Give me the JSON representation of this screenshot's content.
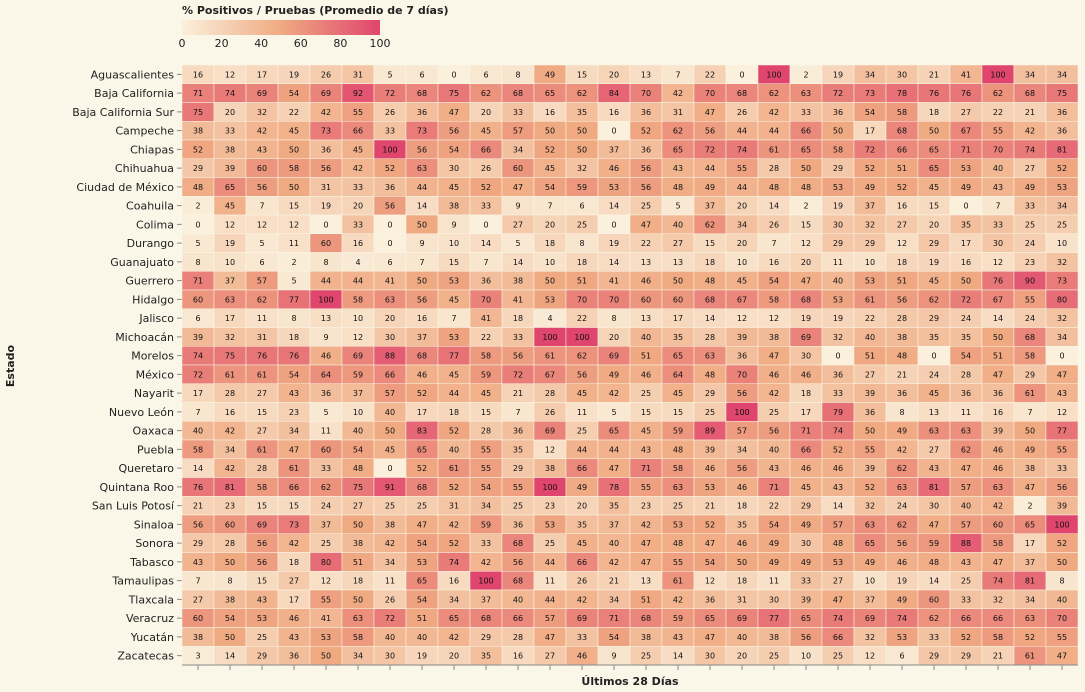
{
  "chart_data": {
    "type": "heatmap",
    "legend": {
      "title": "% Positivos / Pruebas (Promedio de 7 días)",
      "ticks": [
        "0",
        "20",
        "40",
        "60",
        "80",
        "100"
      ],
      "domain": [
        0,
        100
      ],
      "color_low": "#faf0dc",
      "color_high": "#e0456e"
    },
    "xlabel": "Últimos 28 Días",
    "ylabel": "Estado",
    "grid": false,
    "rows": [
      {
        "label": "Aguascalientes",
        "values": [
          16,
          12,
          17,
          19,
          26,
          31,
          5,
          6,
          0,
          6,
          8,
          49,
          15,
          20,
          13,
          7,
          22,
          0,
          100,
          2,
          19,
          34,
          30,
          21,
          41,
          100,
          34,
          34
        ]
      },
      {
        "label": "Baja California",
        "values": [
          71,
          74,
          69,
          54,
          69,
          92,
          72,
          68,
          75,
          62,
          68,
          65,
          62,
          84,
          70,
          42,
          70,
          68,
          62,
          63,
          72,
          73,
          78,
          76,
          76,
          62,
          68,
          75
        ]
      },
      {
        "label": "Baja California Sur",
        "values": [
          75,
          20,
          32,
          22,
          42,
          55,
          26,
          36,
          47,
          20,
          33,
          16,
          35,
          16,
          36,
          31,
          47,
          26,
          42,
          33,
          36,
          54,
          58,
          18,
          27,
          22,
          21,
          36
        ]
      },
      {
        "label": "Campeche",
        "values": [
          38,
          33,
          42,
          45,
          73,
          66,
          33,
          73,
          56,
          45,
          57,
          50,
          50,
          0,
          52,
          62,
          56,
          44,
          44,
          66,
          50,
          17,
          68,
          50,
          67,
          55,
          42,
          36
        ]
      },
      {
        "label": "Chiapas",
        "values": [
          52,
          38,
          43,
          50,
          36,
          45,
          100,
          56,
          54,
          66,
          34,
          52,
          50,
          37,
          36,
          65,
          72,
          74,
          61,
          65,
          58,
          72,
          66,
          65,
          71,
          70,
          74,
          81
        ]
      },
      {
        "label": "Chihuahua",
        "values": [
          29,
          39,
          60,
          58,
          56,
          42,
          52,
          63,
          30,
          26,
          60,
          45,
          32,
          46,
          56,
          43,
          44,
          55,
          28,
          50,
          29,
          52,
          51,
          65,
          53,
          40,
          27,
          52
        ]
      },
      {
        "label": "Ciudad de México",
        "values": [
          48,
          65,
          56,
          50,
          31,
          33,
          36,
          44,
          45,
          52,
          47,
          54,
          59,
          53,
          56,
          48,
          49,
          44,
          48,
          48,
          53,
          49,
          52,
          45,
          49,
          43,
          49,
          53
        ]
      },
      {
        "label": "Coahuila",
        "values": [
          2,
          45,
          7,
          15,
          19,
          20,
          56,
          14,
          38,
          33,
          9,
          7,
          6,
          14,
          25,
          5,
          37,
          20,
          14,
          2,
          19,
          37,
          16,
          15,
          0,
          7,
          33,
          34
        ]
      },
      {
        "label": "Colima",
        "values": [
          0,
          12,
          12,
          12,
          0,
          33,
          0,
          50,
          9,
          0,
          27,
          20,
          25,
          0,
          47,
          40,
          62,
          34,
          26,
          15,
          30,
          32,
          27,
          20,
          35,
          33,
          25,
          25
        ]
      },
      {
        "label": "Durango",
        "values": [
          5,
          19,
          5,
          11,
          60,
          16,
          0,
          9,
          10,
          14,
          5,
          18,
          8,
          19,
          22,
          27,
          15,
          20,
          7,
          12,
          29,
          29,
          12,
          29,
          17,
          30,
          24,
          10
        ]
      },
      {
        "label": "Guanajuato",
        "values": [
          8,
          10,
          6,
          2,
          8,
          4,
          6,
          7,
          15,
          7,
          14,
          10,
          18,
          14,
          13,
          13,
          18,
          10,
          16,
          20,
          11,
          10,
          18,
          19,
          16,
          12,
          23,
          32
        ]
      },
      {
        "label": "Guerrero",
        "values": [
          71,
          37,
          57,
          5,
          44,
          44,
          41,
          50,
          53,
          36,
          38,
          50,
          51,
          41,
          46,
          50,
          48,
          45,
          54,
          47,
          40,
          53,
          51,
          45,
          50,
          76,
          90,
          73
        ]
      },
      {
        "label": "Hidalgo",
        "values": [
          60,
          63,
          62,
          77,
          100,
          58,
          63,
          56,
          45,
          70,
          41,
          53,
          70,
          70,
          60,
          60,
          68,
          67,
          58,
          68,
          53,
          61,
          56,
          62,
          72,
          67,
          55,
          80
        ]
      },
      {
        "label": "Jalisco",
        "values": [
          6,
          17,
          11,
          8,
          13,
          10,
          20,
          16,
          7,
          41,
          18,
          4,
          22,
          8,
          13,
          17,
          14,
          12,
          12,
          19,
          19,
          22,
          28,
          29,
          24,
          14,
          24,
          32
        ]
      },
      {
        "label": "Michoacán",
        "values": [
          39,
          32,
          31,
          18,
          9,
          12,
          30,
          37,
          53,
          22,
          33,
          100,
          100,
          20,
          40,
          35,
          28,
          39,
          38,
          69,
          32,
          40,
          38,
          35,
          35,
          50,
          68,
          34
        ]
      },
      {
        "label": "Morelos",
        "values": [
          74,
          75,
          76,
          76,
          46,
          69,
          88,
          68,
          77,
          58,
          56,
          61,
          62,
          69,
          51,
          65,
          63,
          36,
          47,
          30,
          0,
          51,
          48,
          0,
          54,
          51,
          58,
          0
        ]
      },
      {
        "label": "México",
        "values": [
          72,
          61,
          61,
          54,
          64,
          59,
          66,
          46,
          45,
          59,
          72,
          67,
          56,
          49,
          46,
          64,
          48,
          70,
          46,
          46,
          36,
          27,
          21,
          24,
          28,
          47,
          29,
          47
        ]
      },
      {
        "label": "Nayarit",
        "values": [
          17,
          28,
          27,
          43,
          36,
          37,
          57,
          52,
          44,
          45,
          21,
          28,
          45,
          42,
          25,
          45,
          29,
          56,
          42,
          18,
          33,
          39,
          36,
          45,
          36,
          36,
          61,
          43
        ]
      },
      {
        "label": "Nuevo León",
        "values": [
          7,
          16,
          15,
          23,
          5,
          10,
          40,
          17,
          18,
          15,
          7,
          26,
          11,
          5,
          15,
          15,
          25,
          100,
          25,
          17,
          79,
          36,
          8,
          13,
          11,
          16,
          7,
          12
        ]
      },
      {
        "label": "Oaxaca",
        "values": [
          40,
          42,
          27,
          34,
          11,
          40,
          50,
          83,
          52,
          28,
          36,
          69,
          25,
          65,
          45,
          59,
          89,
          57,
          56,
          71,
          74,
          50,
          49,
          63,
          63,
          39,
          50,
          77
        ]
      },
      {
        "label": "Puebla",
        "values": [
          58,
          34,
          61,
          47,
          60,
          54,
          45,
          65,
          40,
          55,
          35,
          12,
          44,
          44,
          43,
          48,
          39,
          34,
          40,
          66,
          52,
          55,
          42,
          27,
          62,
          46,
          49,
          55
        ]
      },
      {
        "label": "Queretaro",
        "values": [
          14,
          42,
          28,
          61,
          33,
          48,
          0,
          52,
          61,
          55,
          29,
          38,
          66,
          47,
          71,
          58,
          46,
          56,
          43,
          46,
          46,
          39,
          62,
          43,
          47,
          46,
          38,
          33
        ]
      },
      {
        "label": "Quintana Roo",
        "values": [
          76,
          81,
          58,
          66,
          62,
          75,
          91,
          68,
          52,
          54,
          55,
          100,
          49,
          78,
          55,
          63,
          53,
          46,
          71,
          45,
          43,
          52,
          63,
          81,
          57,
          63,
          47,
          56
        ]
      },
      {
        "label": "San Luis Potosí",
        "values": [
          21,
          23,
          15,
          15,
          24,
          27,
          25,
          25,
          31,
          34,
          25,
          23,
          20,
          35,
          23,
          25,
          21,
          18,
          22,
          29,
          14,
          32,
          24,
          30,
          40,
          42,
          2,
          39
        ]
      },
      {
        "label": "Sinaloa",
        "values": [
          56,
          60,
          69,
          73,
          37,
          50,
          38,
          47,
          42,
          59,
          36,
          53,
          35,
          37,
          42,
          53,
          52,
          35,
          54,
          49,
          57,
          63,
          62,
          47,
          57,
          60,
          65,
          100
        ]
      },
      {
        "label": "Sonora",
        "values": [
          29,
          28,
          56,
          42,
          25,
          38,
          42,
          54,
          52,
          33,
          68,
          25,
          45,
          40,
          47,
          48,
          47,
          46,
          49,
          30,
          48,
          65,
          56,
          59,
          88,
          58,
          17,
          52
        ]
      },
      {
        "label": "Tabasco",
        "values": [
          43,
          50,
          56,
          18,
          80,
          51,
          34,
          53,
          74,
          42,
          56,
          44,
          66,
          42,
          47,
          55,
          54,
          50,
          49,
          49,
          53,
          49,
          46,
          48,
          43,
          47,
          37,
          50
        ]
      },
      {
        "label": "Tamaulipas",
        "values": [
          7,
          8,
          15,
          27,
          12,
          18,
          11,
          65,
          16,
          100,
          68,
          11,
          26,
          21,
          13,
          61,
          12,
          18,
          11,
          33,
          27,
          10,
          19,
          14,
          25,
          74,
          81,
          8
        ]
      },
      {
        "label": "Tlaxcala",
        "values": [
          27,
          38,
          43,
          17,
          55,
          50,
          26,
          54,
          34,
          37,
          40,
          44,
          42,
          34,
          51,
          42,
          36,
          31,
          30,
          39,
          47,
          37,
          49,
          60,
          33,
          32,
          34,
          40
        ]
      },
      {
        "label": "Veracruz",
        "values": [
          60,
          54,
          53,
          46,
          41,
          63,
          72,
          51,
          65,
          68,
          66,
          57,
          69,
          71,
          68,
          59,
          65,
          69,
          77,
          65,
          74,
          69,
          74,
          62,
          66,
          66,
          63,
          70
        ]
      },
      {
        "label": "Yucatán",
        "values": [
          38,
          50,
          25,
          43,
          53,
          58,
          40,
          40,
          42,
          29,
          28,
          47,
          33,
          54,
          38,
          43,
          47,
          40,
          38,
          56,
          66,
          32,
          53,
          33,
          52,
          58,
          52,
          55
        ]
      },
      {
        "label": "Zacatecas",
        "values": [
          3,
          14,
          29,
          36,
          50,
          34,
          30,
          19,
          20,
          35,
          16,
          27,
          46,
          9,
          25,
          14,
          30,
          20,
          25,
          10,
          25,
          12,
          6,
          29,
          29,
          21,
          61,
          47
        ]
      }
    ]
  }
}
